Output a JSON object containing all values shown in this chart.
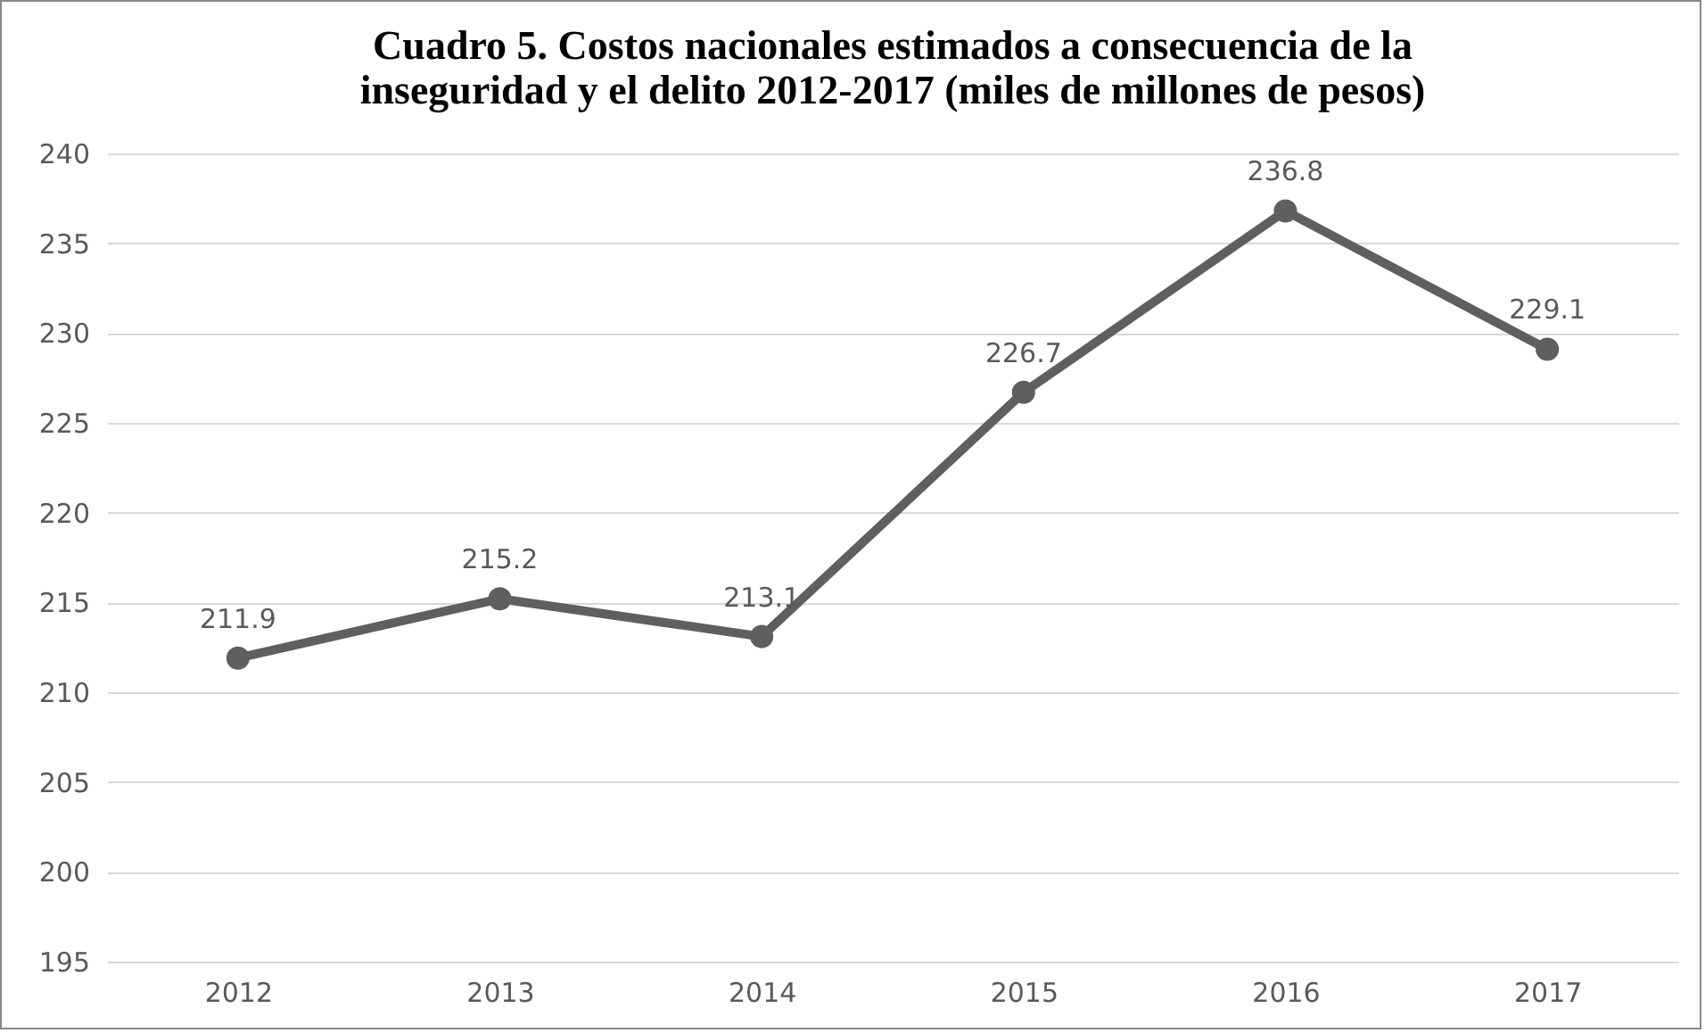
{
  "chart_data": {
    "type": "line",
    "title": "Cuadro 5. Costos nacionales estimados a consecuencia de la inseguridad y el delito 2012-2017 (miles de millones de pesos)",
    "categories": [
      "2012",
      "2013",
      "2014",
      "2015",
      "2016",
      "2017"
    ],
    "series": [
      {
        "color": "#5f5f5f",
        "values": [
          211.9,
          215.2,
          213.1,
          226.7,
          236.8,
          229.1
        ]
      }
    ],
    "ylim": [
      195,
      240
    ],
    "yticks": [
      195,
      200,
      205,
      210,
      215,
      220,
      225,
      230,
      235,
      240
    ],
    "grid": "y",
    "marker": "circle",
    "line_style": "solid",
    "data_labels": true
  }
}
